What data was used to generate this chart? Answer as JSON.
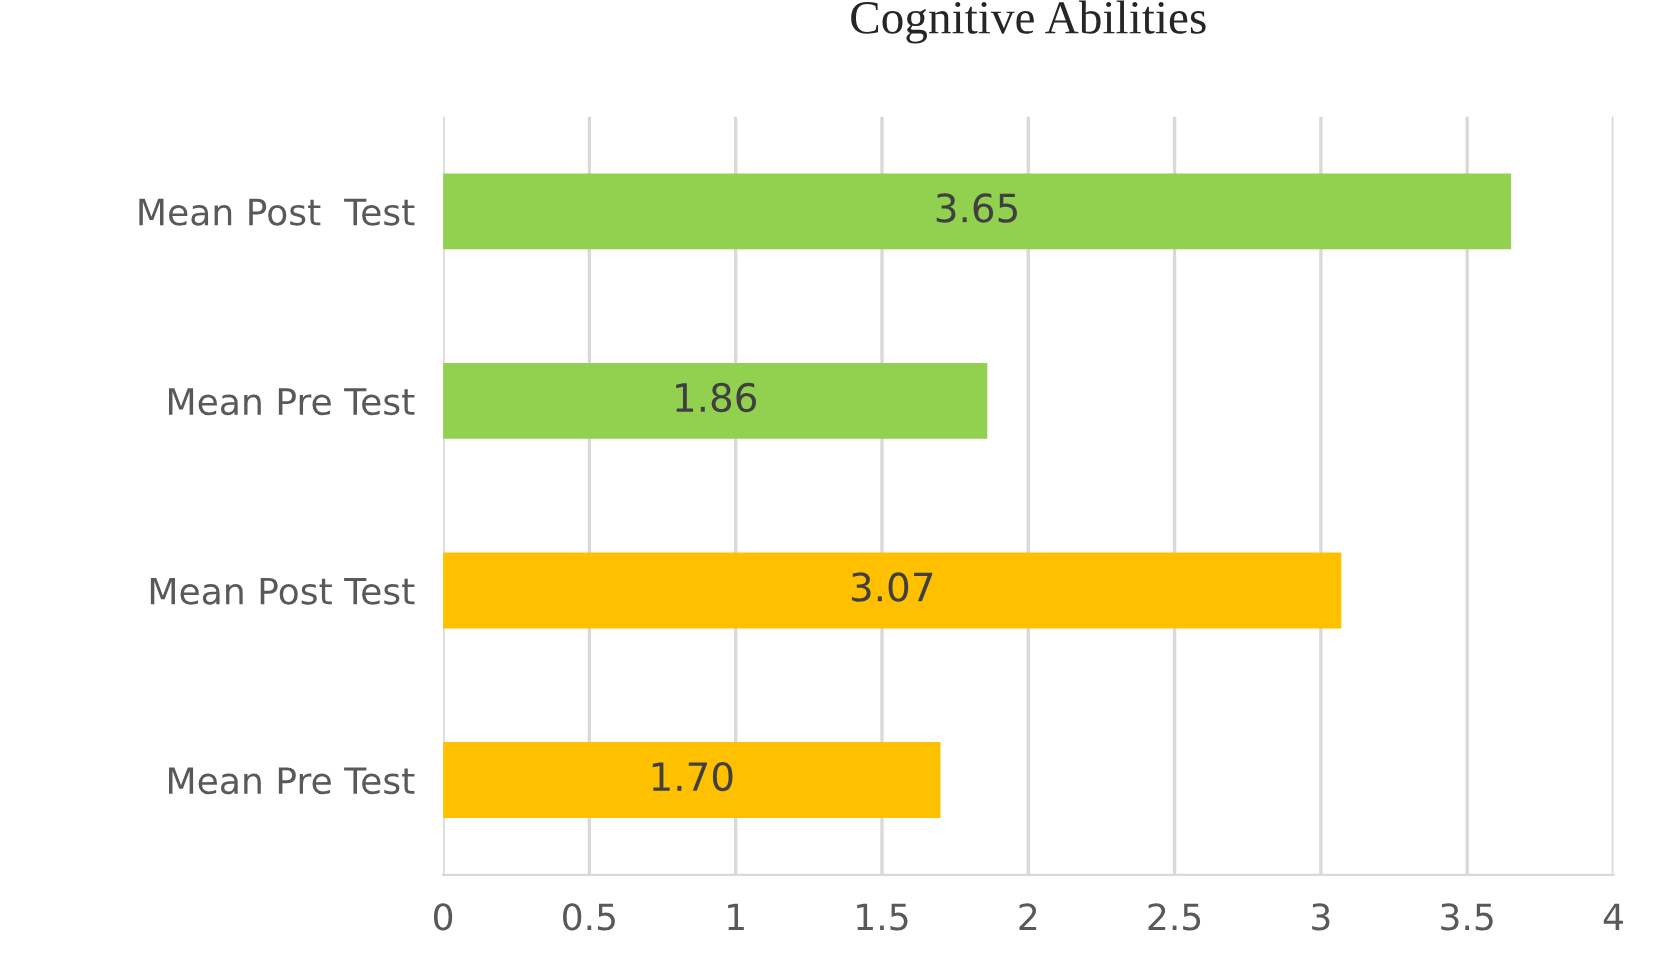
{
  "chart_data": {
    "type": "bar",
    "orientation": "horizontal",
    "title": "Cognitive Abilities",
    "categories": [
      "Mean Post  Test",
      "Mean Pre Test",
      "Mean Post Test",
      "Mean Pre Test"
    ],
    "values": [
      3.65,
      1.86,
      3.07,
      1.7
    ],
    "value_labels": [
      "3.65",
      "1.86",
      "3.07",
      "1.70"
    ],
    "colors": [
      "#92d050",
      "#92d050",
      "#ffc000",
      "#ffc000"
    ],
    "xlim": [
      0,
      4
    ],
    "xticks": [
      0,
      0.5,
      1,
      1.5,
      2,
      2.5,
      3,
      3.5,
      4
    ],
    "grid": "x"
  }
}
